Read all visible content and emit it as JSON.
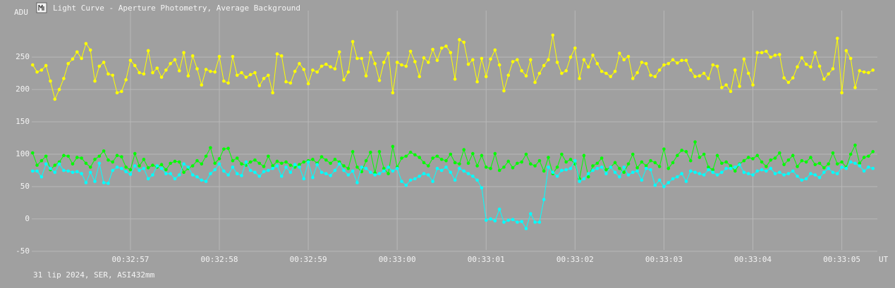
{
  "chart_data": {
    "type": "line",
    "title": "Light Curve - Aperture Photometry, Average Background",
    "y_label": "ADU",
    "x_label": "UT",
    "footer": "31 lip 2024, SER, ASI432mm",
    "xlim": [
      55.89,
      65.4
    ],
    "ylim": [
      -48,
      322
    ],
    "xticks": [
      {
        "value": 57,
        "label": "00:32:57"
      },
      {
        "value": 58,
        "label": "00:32:58"
      },
      {
        "value": 59,
        "label": "00:32:59"
      },
      {
        "value": 60,
        "label": "00:33:00"
      },
      {
        "value": 61,
        "label": "00:33:01"
      },
      {
        "value": 62,
        "label": "00:33:02"
      },
      {
        "value": 63,
        "label": "00:33:03"
      },
      {
        "value": 64,
        "label": "00:33:04"
      },
      {
        "value": 65,
        "label": "00:33:05"
      }
    ],
    "yticks": [
      -50,
      0,
      50,
      100,
      150,
      200,
      250
    ],
    "grid": true,
    "x": [
      55.9,
      55.95,
      56,
      56.05,
      56.1,
      56.15,
      56.2,
      56.25,
      56.3,
      56.35,
      56.4,
      56.45,
      56.5,
      56.55,
      56.6,
      56.65,
      56.7,
      56.75,
      56.8,
      56.85,
      56.9,
      56.95,
      57,
      57.05,
      57.1,
      57.15,
      57.2,
      57.25,
      57.3,
      57.35,
      57.4,
      57.45,
      57.5,
      57.55,
      57.6,
      57.65,
      57.7,
      57.75,
      57.8,
      57.85,
      57.9,
      57.95,
      58,
      58.05,
      58.1,
      58.15,
      58.2,
      58.25,
      58.3,
      58.35,
      58.4,
      58.45,
      58.5,
      58.55,
      58.6,
      58.65,
      58.7,
      58.75,
      58.8,
      58.85,
      58.9,
      58.95,
      59,
      59.05,
      59.1,
      59.15,
      59.2,
      59.25,
      59.3,
      59.35,
      59.4,
      59.45,
      59.5,
      59.55,
      59.6,
      59.65,
      59.7,
      59.75,
      59.8,
      59.85,
      59.9,
      59.95,
      60,
      60.05,
      60.1,
      60.15,
      60.2,
      60.25,
      60.3,
      60.35,
      60.4,
      60.45,
      60.5,
      60.55,
      60.6,
      60.65,
      60.7,
      60.75,
      60.8,
      60.85,
      60.9,
      60.95,
      61,
      61.05,
      61.1,
      61.15,
      61.2,
      61.25,
      61.3,
      61.35,
      61.4,
      61.45,
      61.5,
      61.55,
      61.6,
      61.65,
      61.7,
      61.75,
      61.8,
      61.85,
      61.9,
      61.95,
      62,
      62.05,
      62.1,
      62.15,
      62.2,
      62.25,
      62.3,
      62.35,
      62.4,
      62.45,
      62.5,
      62.55,
      62.6,
      62.65,
      62.7,
      62.75,
      62.8,
      62.85,
      62.9,
      62.95,
      63,
      63.05,
      63.1,
      63.15,
      63.2,
      63.25,
      63.3,
      63.35,
      63.4,
      63.45,
      63.5,
      63.55,
      63.6,
      63.65,
      63.7,
      63.75,
      63.8,
      63.85,
      63.9,
      63.95,
      64,
      64.05,
      64.1,
      64.15,
      64.2,
      64.25,
      64.3,
      64.35,
      64.4,
      64.45,
      64.5,
      64.55,
      64.6,
      64.65,
      64.7,
      64.75,
      64.8,
      64.85,
      64.9,
      64.95,
      65,
      65.05,
      65.1,
      65.15,
      65.2,
      65.25,
      65.3,
      65.35
    ],
    "series": [
      {
        "color": "#ffff00",
        "values": [
          238,
          227,
          230,
          237,
          213,
          185,
          200,
          217,
          240,
          247,
          258,
          248,
          271,
          261,
          213,
          236,
          242,
          224,
          222,
          195,
          197,
          215,
          245,
          237,
          226,
          224,
          260,
          226,
          233,
          219,
          230,
          240,
          246,
          229,
          257,
          221,
          252,
          232,
          207,
          231,
          228,
          227,
          251,
          213,
          210,
          251,
          222,
          226,
          219,
          223,
          226,
          206,
          217,
          222,
          195,
          255,
          252,
          212,
          210,
          228,
          240,
          231,
          209,
          230,
          227,
          236,
          239,
          235,
          232,
          258,
          215,
          227,
          274,
          248,
          248,
          221,
          257,
          240,
          214,
          242,
          256,
          195,
          242,
          238,
          236,
          259,
          243,
          220,
          249,
          242,
          262,
          245,
          264,
          267,
          257,
          216,
          277,
          273,
          239,
          246,
          212,
          248,
          220,
          247,
          261,
          238,
          198,
          222,
          243,
          246,
          229,
          221,
          246,
          211,
          225,
          237,
          246,
          284,
          242,
          225,
          229,
          250,
          264,
          217,
          246,
          235,
          253,
          240,
          228,
          225,
          220,
          228,
          256,
          246,
          251,
          217,
          226,
          242,
          240,
          222,
          220,
          230,
          238,
          240,
          246,
          241,
          245,
          245,
          230,
          220,
          221,
          225,
          217,
          238,
          236,
          203,
          207,
          197,
          230,
          205,
          247,
          225,
          207,
          257,
          257,
          259,
          250,
          253,
          254,
          218,
          211,
          218,
          235,
          249,
          239,
          235,
          257,
          236,
          216,
          224,
          232,
          279,
          195,
          260,
          248,
          203,
          229,
          227,
          226,
          230
        ]
      },
      {
        "color": "#00ff00",
        "values": [
          102,
          83,
          90,
          97,
          76,
          83,
          88,
          98,
          97,
          85,
          95,
          94,
          86,
          80,
          92,
          97,
          105,
          91,
          88,
          98,
          96,
          80,
          76,
          101,
          82,
          92,
          79,
          83,
          80,
          84,
          76,
          86,
          89,
          88,
          72,
          78,
          82,
          90,
          85,
          97,
          110,
          86,
          93,
          108,
          109,
          90,
          94,
          85,
          83,
          88,
          91,
          86,
          81,
          97,
          82,
          89,
          86,
          88,
          83,
          80,
          84,
          88,
          90,
          92,
          86,
          96,
          91,
          86,
          92,
          88,
          82,
          78,
          104,
          80,
          73,
          90,
          103,
          71,
          104,
          78,
          70,
          112,
          80,
          94,
          97,
          103,
          99,
          95,
          87,
          82,
          94,
          97,
          92,
          90,
          100,
          87,
          85,
          107,
          86,
          101,
          82,
          98,
          80,
          78,
          101,
          75,
          80,
          89,
          79,
          86,
          88,
          100,
          85,
          82,
          90,
          74,
          95,
          70,
          80,
          100,
          88,
          92,
          85,
          62,
          98,
          65,
          82,
          86,
          94,
          76,
          80,
          87,
          78,
          72,
          85,
          100,
          79,
          88,
          82,
          90,
          87,
          81,
          108,
          78,
          87,
          98,
          106,
          104,
          90,
          119,
          95,
          100,
          80,
          76,
          98,
          86,
          88,
          82,
          74,
          85,
          90,
          95,
          93,
          98,
          88,
          81,
          91,
          94,
          102,
          84,
          91,
          98,
          81,
          90,
          88,
          95,
          84,
          86,
          79,
          85,
          102,
          85,
          88,
          80,
          100,
          114,
          86,
          95,
          97,
          104
        ]
      },
      {
        "color": "#00ffff",
        "values": [
          74,
          74,
          65,
          85,
          78,
          72,
          85,
          75,
          74,
          72,
          73,
          70,
          56,
          72,
          58,
          86,
          56,
          55,
          75,
          80,
          78,
          73,
          69,
          82,
          75,
          78,
          62,
          68,
          82,
          78,
          70,
          70,
          62,
          68,
          85,
          80,
          68,
          65,
          60,
          58,
          70,
          76,
          85,
          74,
          68,
          80,
          70,
          67,
          88,
          75,
          72,
          66,
          73,
          75,
          78,
          82,
          66,
          80,
          72,
          84,
          80,
          62,
          88,
          64,
          84,
          72,
          70,
          67,
          75,
          85,
          75,
          68,
          74,
          56,
          80,
          78,
          72,
          68,
          70,
          74,
          80,
          74,
          78,
          58,
          52,
          60,
          62,
          66,
          70,
          68,
          58,
          78,
          75,
          80,
          72,
          60,
          78,
          74,
          70,
          66,
          60,
          48,
          -2,
          0,
          -3,
          15,
          -5,
          -2,
          -1,
          -5,
          -4,
          -15,
          8,
          -5,
          -5,
          30,
          80,
          72,
          66,
          75,
          76,
          78,
          90,
          58,
          62,
          70,
          75,
          78,
          80,
          70,
          80,
          72,
          65,
          80,
          68,
          72,
          74,
          60,
          78,
          76,
          52,
          60,
          50,
          56,
          62,
          65,
          70,
          58,
          74,
          72,
          70,
          68,
          76,
          72,
          68,
          72,
          78,
          78,
          80,
          84,
          72,
          70,
          68,
          74,
          76,
          74,
          78,
          70,
          72,
          68,
          70,
          74,
          66,
          60,
          62,
          70,
          68,
          64,
          72,
          78,
          72,
          70,
          80,
          78,
          88,
          86,
          82,
          74,
          80,
          78
        ]
      }
    ]
  }
}
